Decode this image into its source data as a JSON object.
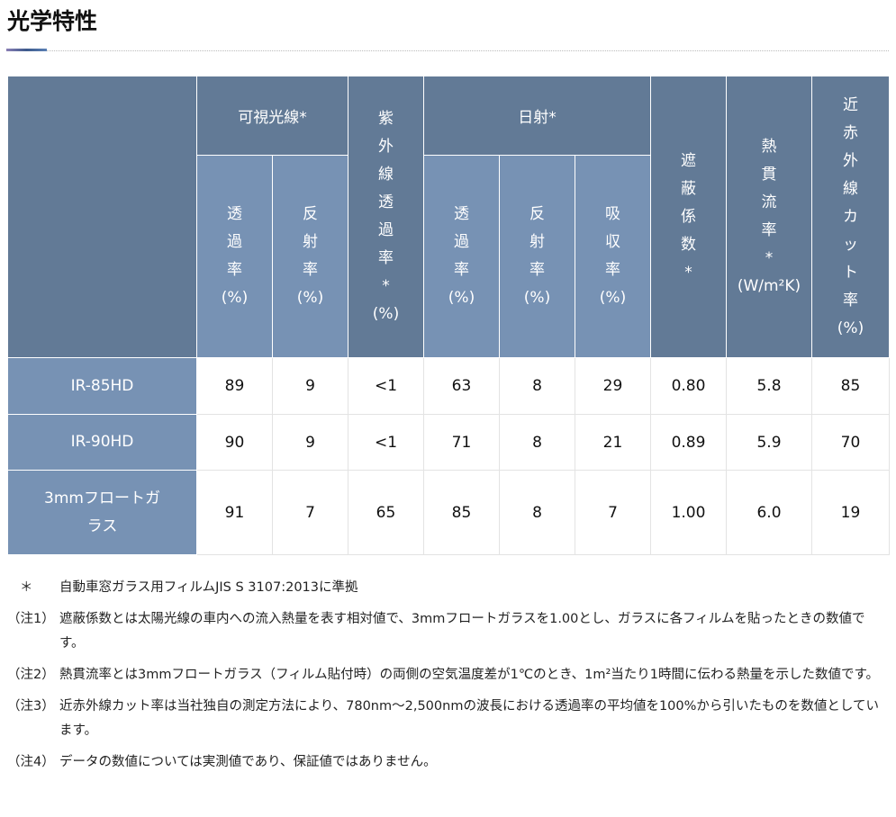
{
  "title": "光学特性",
  "headers": {
    "visible": "可視光線*",
    "uv": "紫外線透過率*",
    "uv_unit": "(%)",
    "solar": "日射*",
    "shading": "遮蔽係数*",
    "heat": "熱貫流率*",
    "heat_unit": "(W/m²K)",
    "nir": "近赤外線カット率",
    "nir_unit": "(%)",
    "transmit": "透過率",
    "reflect": "反射率",
    "absorb": "吸収率",
    "pct": "(%)"
  },
  "rows": [
    {
      "name": "IR-85HD",
      "values": [
        "89",
        "9",
        "<1",
        "63",
        "8",
        "29",
        "0.80",
        "5.8",
        "85"
      ]
    },
    {
      "name": "IR-90HD",
      "values": [
        "90",
        "9",
        "<1",
        "71",
        "8",
        "21",
        "0.89",
        "5.9",
        "70"
      ]
    },
    {
      "name": "3mmフロートガラス",
      "values": [
        "91",
        "7",
        "65",
        "85",
        "8",
        "7",
        "1.00",
        "6.0",
        "19"
      ]
    }
  ],
  "notes": [
    {
      "key": "＊",
      "text": "自動車窓ガラス用フィルムJIS S 3107:2013に準拠"
    },
    {
      "key": "（注1）",
      "text": "遮蔽係数とは太陽光線の車内への流入熱量を表す相対値で、3mmフロートガラスを1.00とし、ガラスに各フィルムを貼ったときの数値です。"
    },
    {
      "key": "（注2）",
      "text": "熱貫流率とは3mmフロートガラス（フィルム貼付時）の両側の空気温度差が1℃のとき、1m²当たり1時間に伝わる熱量を示した数値です。"
    },
    {
      "key": "（注3）",
      "text": "近赤外線カット率は当社独自の測定方法により、780nm～2,500nmの波長における透過率の平均値を100%から引いたものを数値としています。"
    },
    {
      "key": "（注4）",
      "text": "データの数値については実測値であり、保証値ではありません。"
    }
  ]
}
